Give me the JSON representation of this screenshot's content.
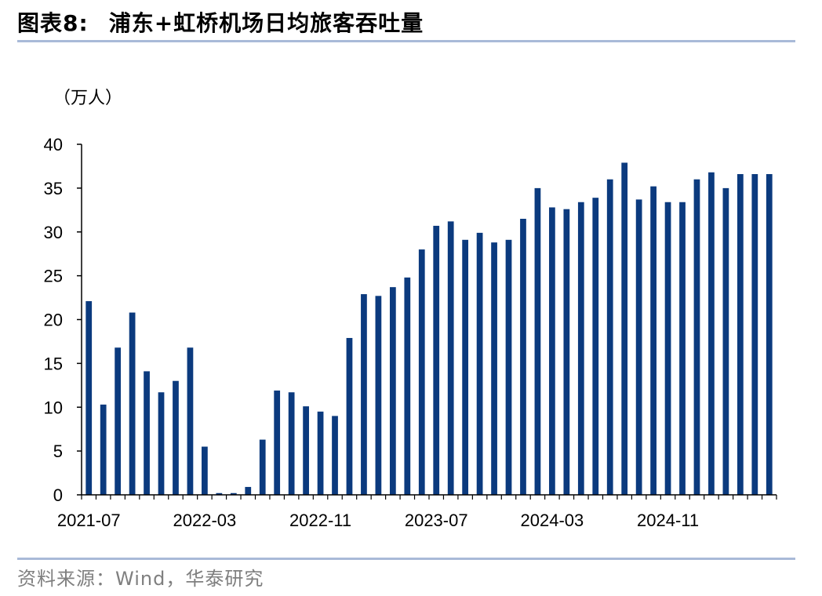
{
  "header": {
    "figure_label": "图表8:",
    "title": "浦东+虹桥机场日均旅客吞吐量"
  },
  "source": "资料来源：Wind，华泰研究",
  "colors": {
    "bar": "#0b3a7e",
    "rule": "#a9bad8",
    "axis": "#000000",
    "source_text": "#7f7f7f"
  },
  "chart_data": {
    "type": "bar",
    "unit_label": "（万人）",
    "ylim": [
      0,
      40
    ],
    "yticks": [
      0,
      5,
      10,
      15,
      20,
      25,
      30,
      35,
      40
    ],
    "x_tick_labels": [
      "2021-07",
      "2022-03",
      "2022-11",
      "2023-07",
      "2024-03",
      "2024-11"
    ],
    "grid": false,
    "legend": "none",
    "categories": [
      "2021-07",
      "2021-08",
      "2021-09",
      "2021-10",
      "2021-11",
      "2021-12",
      "2022-01",
      "2022-02",
      "2022-03",
      "2022-04",
      "2022-05",
      "2022-06",
      "2022-07",
      "2022-08",
      "2022-09",
      "2022-10",
      "2022-11",
      "2022-12",
      "2023-01",
      "2023-02",
      "2023-03",
      "2023-04",
      "2023-05",
      "2023-06",
      "2023-07",
      "2023-08",
      "2023-09",
      "2023-10",
      "2023-11",
      "2023-12",
      "2024-01",
      "2024-02",
      "2024-03",
      "2024-04",
      "2024-05",
      "2024-06",
      "2024-07",
      "2024-08",
      "2024-09",
      "2024-10",
      "2024-11",
      "2024-12",
      "2025-01",
      "2025-02",
      "2025-03",
      "2025-04",
      "2025-05",
      "2025-06"
    ],
    "values": [
      22.1,
      10.3,
      16.8,
      20.8,
      14.1,
      11.7,
      13.0,
      16.8,
      5.5,
      0.2,
      0.2,
      0.9,
      6.3,
      11.9,
      11.7,
      10.1,
      9.5,
      9.0,
      17.9,
      22.9,
      22.7,
      23.7,
      24.8,
      28.0,
      30.7,
      31.2,
      29.1,
      29.9,
      28.8,
      29.1,
      31.5,
      35.0,
      32.8,
      32.6,
      33.4,
      33.9,
      36.0,
      37.9,
      33.7,
      35.2,
      33.4,
      33.4,
      36.0,
      36.8,
      35.0,
      36.6,
      36.6,
      36.6
    ]
  }
}
